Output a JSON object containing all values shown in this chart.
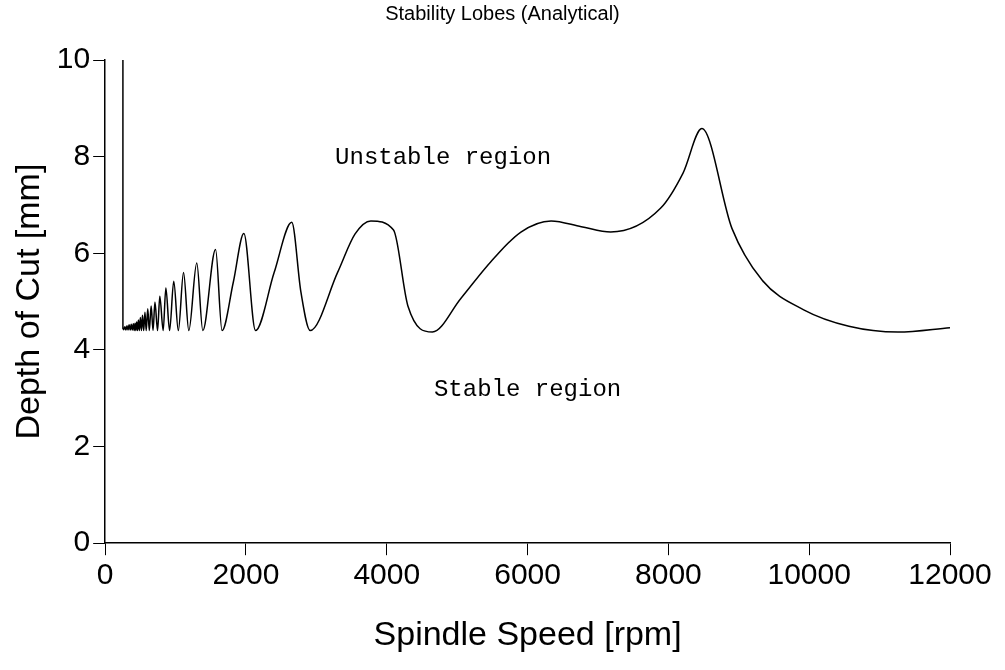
{
  "chart_data": {
    "type": "line",
    "title": "Stability Lobes (Analytical)",
    "xlabel": "Spindle Speed [rpm]",
    "ylabel": "Depth of Cut [mm]",
    "annotations": [
      "Unstable region",
      "Stable region"
    ],
    "series": [
      {
        "color": "#000000",
        "x": [
          252,
          252,
          265,
          280,
          295,
          310,
          325,
          340,
          355,
          370,
          385,
          400,
          412,
          425,
          436,
          448,
          460,
          472,
          486,
          500,
          515,
          530,
          547,
          565,
          583,
          605,
          627,
          653,
          680,
          707,
          744,
          776,
          824,
          862,
          915,
          974,
          1039,
          1113,
          1188,
          1301,
          1387,
          1568,
          1660,
          1820,
          1970,
          2136,
          2400,
          2650,
          2780,
          2912,
          3300,
          3550,
          3774,
          4096,
          4300,
          4648,
          5049,
          5475,
          5905,
          6334,
          6763,
          7180,
          7888,
          8208,
          8475,
          8904,
          9333,
          9922,
          10564,
          11261,
          12000
        ],
        "values": [
          10,
          4.44,
          4.42,
          4.48,
          4.41,
          4.5,
          4.41,
          4.52,
          4.41,
          4.53,
          4.41,
          4.54,
          4.4,
          4.55,
          4.4,
          4.58,
          4.4,
          4.62,
          4.4,
          4.67,
          4.4,
          4.72,
          4.4,
          4.78,
          4.4,
          4.85,
          4.4,
          4.91,
          4.4,
          4.99,
          4.4,
          5.11,
          4.4,
          5.28,
          4.4,
          5.42,
          4.4,
          5.6,
          4.4,
          5.8,
          4.4,
          6.08,
          4.4,
          5.4,
          6.41,
          4.4,
          5.6,
          6.64,
          5.2,
          4.4,
          5.6,
          6.4,
          6.67,
          6.48,
          4.91,
          4.37,
          5.06,
          5.82,
          6.44,
          6.67,
          6.55,
          6.44,
          6.93,
          7.66,
          8.58,
          6.51,
          5.44,
          4.83,
          4.49,
          4.37,
          4.46
        ]
      }
    ],
    "xlim": [
      0,
      12000
    ],
    "xticks": [
      0,
      2000,
      4000,
      6000,
      8000,
      10000,
      12000
    ],
    "ylim": [
      0,
      10
    ],
    "yticks": [
      0,
      2,
      4,
      6,
      8,
      10
    ],
    "grid": false,
    "legend": false,
    "marker": "none",
    "line_style": "solid"
  }
}
